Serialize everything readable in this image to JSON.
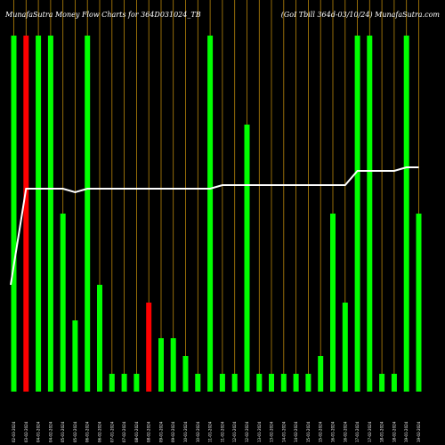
{
  "chart_data": {
    "type": "bar",
    "title_left": "MunafaSutra Money Flow  Charts for 364D031024_TB",
    "title_right": "(GoI   Tbill 364d-03/10/24) MunafaSutra.com",
    "colors": {
      "background": "#000000",
      "up": "#00ff00",
      "down": "#ff0000",
      "gridline": "#b8860b",
      "line": "#ffffff",
      "text": "#ffffff"
    },
    "ylim": [
      0,
      100
    ],
    "categories": [
      "02-03-2024",
      "03-02-2024",
      "04-01-2024",
      "04-02-2024",
      "05-01-2024",
      "05-02-2024",
      "06-01-2024",
      "06-02-2024",
      "07-01-2024",
      "07-02-2024",
      "08-01-2024",
      "08-02-2024",
      "09-01-2024",
      "09-02-2024",
      "10-01-2024",
      "10-02-2024",
      "11-01-2024",
      "11-02-2024",
      "12-01-2024",
      "12-02-2024",
      "13-01-2024",
      "13-02-2024",
      "14-01-2024",
      "14-02-2024",
      "15-01-2024",
      "15-02-2024",
      "16-01-2024",
      "16-02-2024",
      "17-01-2024",
      "17-02-2024",
      "18-01-2024",
      "18-02-2024",
      "19-01-2024",
      "19-02-2024"
    ],
    "values": [
      100,
      100,
      100,
      100,
      50,
      20,
      100,
      30,
      5,
      5,
      5,
      25,
      15,
      15,
      10,
      5,
      100,
      5,
      5,
      75,
      5,
      5,
      5,
      5,
      5,
      10,
      50,
      25,
      100,
      100,
      5,
      5,
      100,
      50
    ],
    "directions": [
      "up",
      "down",
      "up",
      "up",
      "up",
      "up",
      "up",
      "up",
      "up",
      "up",
      "up",
      "down",
      "up",
      "up",
      "up",
      "up",
      "up",
      "up",
      "up",
      "up",
      "up",
      "up",
      "up",
      "up",
      "up",
      "up",
      "up",
      "up",
      "up",
      "up",
      "up",
      "up",
      "up",
      "up"
    ],
    "price_line": [
      30,
      57,
      57,
      57,
      57,
      56,
      57,
      57,
      57,
      57,
      57,
      57,
      57,
      57,
      57,
      57,
      57,
      58,
      58,
      58,
      58,
      58,
      58,
      58,
      58,
      58,
      58,
      58,
      62,
      62,
      62,
      62,
      63,
      63
    ],
    "gridlines": "vertical"
  }
}
